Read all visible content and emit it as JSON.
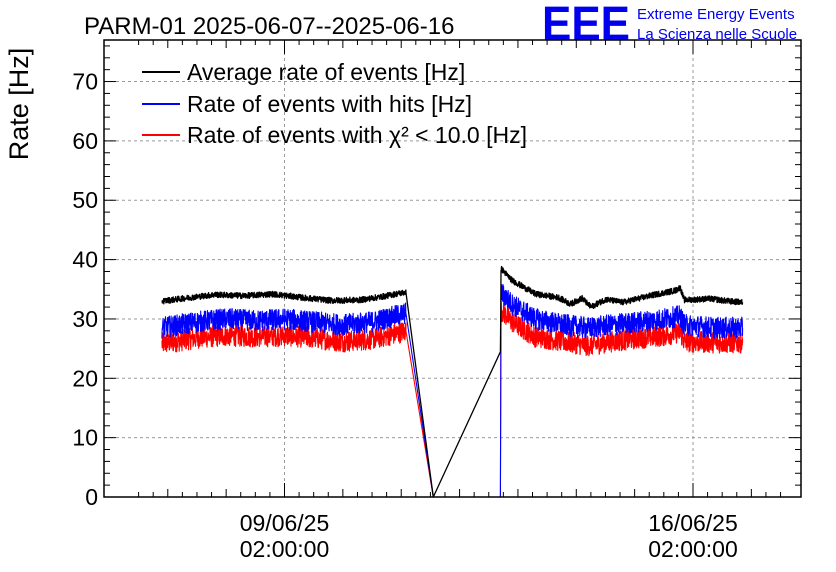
{
  "chart_data": {
    "type": "line",
    "title": "PARM-01 2025-06-07--2025-06-16",
    "ylabel": "Rate [Hz]",
    "xlabel": "",
    "ylim": [
      0,
      77
    ],
    "yticks": [
      0,
      10,
      20,
      30,
      40,
      50,
      60,
      70
    ],
    "xticks": [
      {
        "date": "09/06/25",
        "time": "02:00:00",
        "day": 2.0
      },
      {
        "date": "16/06/25",
        "time": "02:00:00",
        "day": 9.0
      }
    ],
    "grid": true,
    "legend_position": "top-left",
    "logo": {
      "text": "EEE",
      "line1": "Extreme Energy Events",
      "line2": "La Scienza nelle Scuole",
      "color": "#0000ee"
    },
    "series": [
      {
        "name": "Average rate of events [Hz]",
        "color": "#000000",
        "noise": 0.5,
        "points": [
          [
            -0.1,
            33.0
          ],
          [
            0.3,
            33.5
          ],
          [
            0.8,
            34.1
          ],
          [
            1.3,
            33.9
          ],
          [
            1.8,
            34.2
          ],
          [
            2.3,
            33.6
          ],
          [
            2.8,
            33.1
          ],
          [
            3.3,
            33.2
          ],
          [
            3.7,
            33.8
          ],
          [
            3.9,
            34.2
          ],
          [
            4.08,
            34.5
          ],
          [
            4.55,
            0
          ],
          [
            5.7,
            24.0
          ],
          [
            5.71,
            38.5
          ],
          [
            5.9,
            36.5
          ],
          [
            6.3,
            34.2
          ],
          [
            6.7,
            33.6
          ],
          [
            6.9,
            32.5
          ],
          [
            7.1,
            33.5
          ],
          [
            7.25,
            32.0
          ],
          [
            7.5,
            33.3
          ],
          [
            7.8,
            32.8
          ],
          [
            8.3,
            34.0
          ],
          [
            8.7,
            34.8
          ],
          [
            8.78,
            35.3
          ],
          [
            8.85,
            33.2
          ],
          [
            9.3,
            33.4
          ],
          [
            9.6,
            33.0
          ],
          [
            9.85,
            32.8
          ]
        ]
      },
      {
        "name": "Rate of events with hits [Hz]",
        "color": "#0000ff",
        "noise": 1.8,
        "points": [
          [
            -0.1,
            28.5
          ],
          [
            0.5,
            29.5
          ],
          [
            1.0,
            30.0
          ],
          [
            1.5,
            29.7
          ],
          [
            2.0,
            30.0
          ],
          [
            2.5,
            29.5
          ],
          [
            3.0,
            29.0
          ],
          [
            3.5,
            29.5
          ],
          [
            3.9,
            30.5
          ],
          [
            4.08,
            31.0
          ],
          [
            4.55,
            0
          ],
          [
            5.7,
            0
          ],
          [
            5.71,
            34.5
          ],
          [
            5.9,
            32.5
          ],
          [
            6.3,
            30.0
          ],
          [
            6.8,
            29.0
          ],
          [
            7.2,
            28.5
          ],
          [
            7.6,
            29.0
          ],
          [
            8.1,
            29.5
          ],
          [
            8.5,
            30.0
          ],
          [
            8.78,
            30.5
          ],
          [
            8.85,
            29.0
          ],
          [
            9.4,
            28.5
          ],
          [
            9.85,
            28.5
          ]
        ]
      },
      {
        "name": "Rate of events with χ² < 10.0 [Hz]",
        "color": "#ff0000",
        "noise": 1.8,
        "points": [
          [
            -0.1,
            25.8
          ],
          [
            0.5,
            26.8
          ],
          [
            1.0,
            27.2
          ],
          [
            1.5,
            27.0
          ],
          [
            2.0,
            27.2
          ],
          [
            2.5,
            26.8
          ],
          [
            3.0,
            26.2
          ],
          [
            3.5,
            26.6
          ],
          [
            3.9,
            27.5
          ],
          [
            4.08,
            28.0
          ],
          [
            4.55,
            0
          ],
          [
            5.7,
            0
          ],
          [
            5.71,
            31.5
          ],
          [
            5.9,
            29.5
          ],
          [
            6.3,
            27.0
          ],
          [
            6.8,
            26.2
          ],
          [
            7.2,
            25.5
          ],
          [
            7.6,
            26.2
          ],
          [
            8.1,
            26.8
          ],
          [
            8.5,
            27.2
          ],
          [
            8.78,
            27.8
          ],
          [
            8.85,
            26.2
          ],
          [
            9.4,
            26.0
          ],
          [
            9.85,
            26.0
          ]
        ]
      }
    ]
  }
}
